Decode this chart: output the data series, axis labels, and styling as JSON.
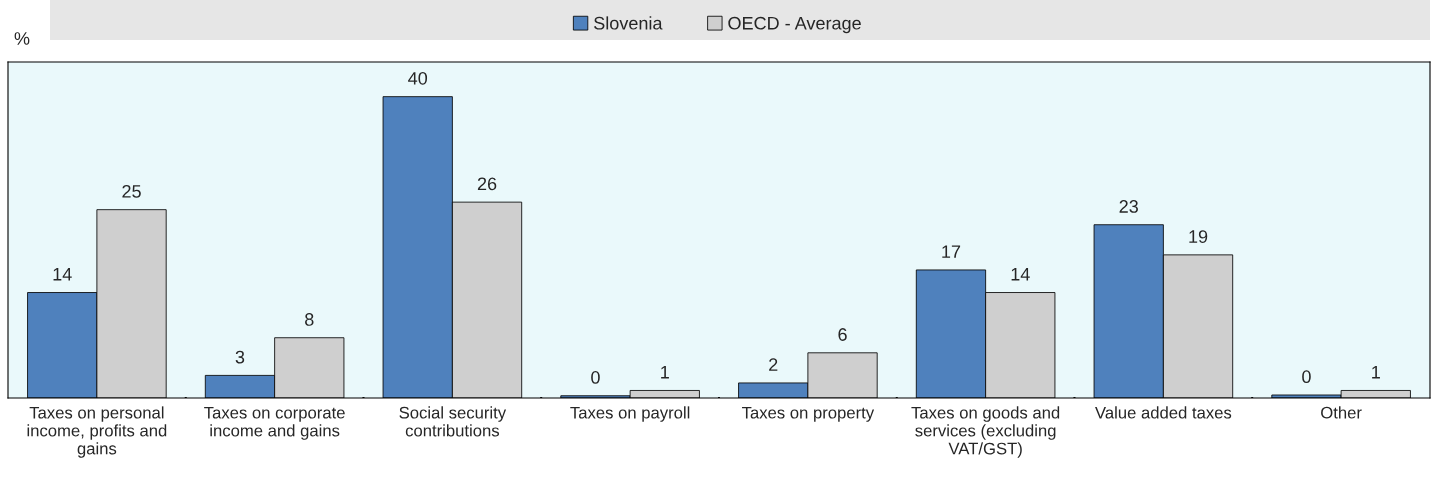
{
  "chart_data": {
    "type": "bar",
    "ylabel": "%",
    "categories": [
      "Taxes on personal income, profits and gains",
      "Taxes on corporate income and gains",
      "Social security contributions",
      "Taxes on payroll",
      "Taxes on property",
      "Taxes on goods and services (excluding VAT/GST)",
      "Value added taxes",
      "Other"
    ],
    "series": [
      {
        "name": "Slovenia",
        "color": "#4f81bd",
        "values": [
          14,
          3,
          40,
          0.3,
          2,
          17,
          23,
          0.4
        ],
        "value_labels": [
          "14",
          "3",
          "40",
          "0",
          "2",
          "17",
          "23",
          "0"
        ]
      },
      {
        "name": "OECD - Average",
        "color": "#cfcfcf",
        "values": [
          25,
          8,
          26,
          1,
          6,
          14,
          19,
          1
        ],
        "value_labels": [
          "25",
          "8",
          "26",
          "1",
          "6",
          "14",
          "19",
          "1"
        ]
      }
    ],
    "ylim": [
      0,
      44.6
    ],
    "tick_labels": "x",
    "grid": false,
    "legend": "top"
  }
}
